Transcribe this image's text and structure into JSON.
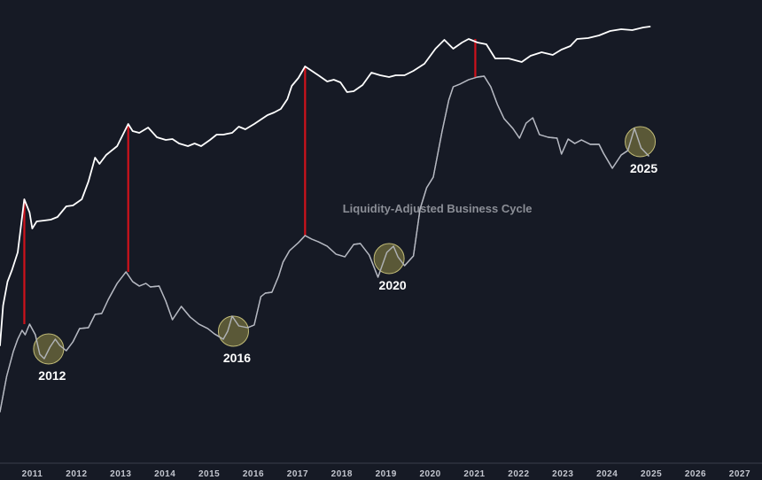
{
  "chart_data": {
    "type": "line",
    "title": "",
    "xlabel": "",
    "ylabel": "",
    "xlim": [
      2010.95,
      2027.6
    ],
    "x_ticks": [
      "2011",
      "2012",
      "2013",
      "2014",
      "2015",
      "2016",
      "2017",
      "2018",
      "2019",
      "2020",
      "2021",
      "2022",
      "2023",
      "2024",
      "2025",
      "2026",
      "2027"
    ],
    "grid": false,
    "colors": {
      "background": "#161a25",
      "price_line": "#ffffff",
      "cycle_line": "#b4b7c0",
      "peak_marker": "#d0121b",
      "cycle_circle_fill": "#6e6a3c",
      "cycle_circle_stroke": "#c2bc78",
      "axis_line": "#3a3e4a"
    },
    "series": [
      {
        "name": "",
        "role": "price",
        "points": [
          [
            2010.95,
            390
          ],
          [
            2011.02,
            345
          ],
          [
            2011.12,
            318
          ],
          [
            2011.22,
            305
          ],
          [
            2011.35,
            285
          ],
          [
            2011.5,
            225
          ],
          [
            2011.62,
            240
          ],
          [
            2011.68,
            258
          ],
          [
            2011.78,
            250
          ],
          [
            2011.95,
            249
          ],
          [
            2012.1,
            248
          ],
          [
            2012.25,
            245
          ],
          [
            2012.45,
            233
          ],
          [
            2012.6,
            232
          ],
          [
            2012.8,
            225
          ],
          [
            2012.95,
            205
          ],
          [
            2013.1,
            178
          ],
          [
            2013.2,
            185
          ],
          [
            2013.35,
            175
          ],
          [
            2013.6,
            165
          ],
          [
            2013.85,
            140
          ],
          [
            2013.95,
            148
          ],
          [
            2014.1,
            150
          ],
          [
            2014.3,
            144
          ],
          [
            2014.5,
            155
          ],
          [
            2014.7,
            158
          ],
          [
            2014.85,
            157
          ],
          [
            2015.0,
            162
          ],
          [
            2015.2,
            165
          ],
          [
            2015.35,
            162
          ],
          [
            2015.5,
            165
          ],
          [
            2015.7,
            158
          ],
          [
            2015.85,
            152
          ],
          [
            2016.0,
            152
          ],
          [
            2016.2,
            150
          ],
          [
            2016.35,
            143
          ],
          [
            2016.5,
            146
          ],
          [
            2016.7,
            140
          ],
          [
            2016.85,
            135
          ],
          [
            2017.0,
            130
          ],
          [
            2017.15,
            127
          ],
          [
            2017.3,
            123
          ],
          [
            2017.45,
            112
          ],
          [
            2017.55,
            97
          ],
          [
            2017.7,
            88
          ],
          [
            2017.85,
            75
          ],
          [
            2018.0,
            80
          ],
          [
            2018.15,
            85
          ],
          [
            2018.35,
            92
          ],
          [
            2018.5,
            90
          ],
          [
            2018.65,
            93
          ],
          [
            2018.8,
            104
          ],
          [
            2018.95,
            103
          ],
          [
            2019.15,
            96
          ],
          [
            2019.35,
            82
          ],
          [
            2019.55,
            85
          ],
          [
            2019.75,
            87
          ],
          [
            2019.9,
            85
          ],
          [
            2020.1,
            85
          ],
          [
            2020.3,
            80
          ],
          [
            2020.55,
            72
          ],
          [
            2020.8,
            55
          ],
          [
            2021.0,
            45
          ],
          [
            2021.2,
            55
          ],
          [
            2021.4,
            48
          ],
          [
            2021.55,
            44
          ],
          [
            2021.75,
            48
          ],
          [
            2021.95,
            50
          ],
          [
            2022.15,
            66
          ],
          [
            2022.45,
            66
          ],
          [
            2022.75,
            70
          ],
          [
            2022.95,
            63
          ],
          [
            2023.2,
            59
          ],
          [
            2023.45,
            62
          ],
          [
            2023.65,
            56
          ],
          [
            2023.85,
            52
          ],
          [
            2024.0,
            44
          ],
          [
            2024.25,
            43
          ],
          [
            2024.5,
            40
          ],
          [
            2024.75,
            35
          ],
          [
            2025.0,
            33
          ],
          [
            2025.25,
            34
          ],
          [
            2025.5,
            31
          ],
          [
            2025.65,
            30
          ]
        ]
      },
      {
        "name": "Liquidity-Adjusted Business Cycle",
        "role": "cycle",
        "points": [
          [
            2010.95,
            465
          ],
          [
            2011.1,
            425
          ],
          [
            2011.25,
            397
          ],
          [
            2011.35,
            383
          ],
          [
            2011.45,
            373
          ],
          [
            2011.52,
            378
          ],
          [
            2011.62,
            366
          ],
          [
            2011.75,
            378
          ],
          [
            2011.85,
            400
          ],
          [
            2011.95,
            405
          ],
          [
            2012.08,
            392
          ],
          [
            2012.2,
            383
          ],
          [
            2012.3,
            390
          ],
          [
            2012.45,
            396
          ],
          [
            2012.6,
            386
          ],
          [
            2012.75,
            371
          ],
          [
            2012.95,
            370
          ],
          [
            2013.1,
            355
          ],
          [
            2013.25,
            354
          ],
          [
            2013.4,
            338
          ],
          [
            2013.6,
            320
          ],
          [
            2013.8,
            307
          ],
          [
            2013.95,
            318
          ],
          [
            2014.1,
            323
          ],
          [
            2014.25,
            320
          ],
          [
            2014.35,
            324
          ],
          [
            2014.55,
            323
          ],
          [
            2014.7,
            340
          ],
          [
            2014.85,
            361
          ],
          [
            2015.05,
            346
          ],
          [
            2015.25,
            358
          ],
          [
            2015.45,
            366
          ],
          [
            2015.65,
            371
          ],
          [
            2015.8,
            377
          ],
          [
            2016.0,
            383
          ],
          [
            2016.1,
            374
          ],
          [
            2016.2,
            357
          ],
          [
            2016.35,
            368
          ],
          [
            2016.55,
            370
          ],
          [
            2016.7,
            367
          ],
          [
            2016.85,
            335
          ],
          [
            2016.95,
            331
          ],
          [
            2017.1,
            330
          ],
          [
            2017.25,
            312
          ],
          [
            2017.35,
            296
          ],
          [
            2017.5,
            283
          ],
          [
            2017.7,
            274
          ],
          [
            2017.85,
            266
          ],
          [
            2018.0,
            270
          ],
          [
            2018.15,
            273
          ],
          [
            2018.35,
            278
          ],
          [
            2018.55,
            287
          ],
          [
            2018.75,
            290
          ],
          [
            2018.95,
            276
          ],
          [
            2019.1,
            275
          ],
          [
            2019.3,
            288
          ],
          [
            2019.5,
            313
          ],
          [
            2019.7,
            285
          ],
          [
            2019.85,
            278
          ],
          [
            2019.95,
            290
          ],
          [
            2020.1,
            300
          ],
          [
            2020.3,
            289
          ],
          [
            2020.45,
            236
          ],
          [
            2020.6,
            212
          ],
          [
            2020.75,
            200
          ],
          [
            2020.95,
            148
          ],
          [
            2021.1,
            113
          ],
          [
            2021.2,
            98
          ],
          [
            2021.35,
            95
          ],
          [
            2021.55,
            90
          ],
          [
            2021.75,
            87
          ],
          [
            2021.9,
            86
          ],
          [
            2022.05,
            98
          ],
          [
            2022.2,
            118
          ],
          [
            2022.35,
            134
          ],
          [
            2022.55,
            145
          ],
          [
            2022.7,
            156
          ],
          [
            2022.85,
            139
          ],
          [
            2023.0,
            133
          ],
          [
            2023.15,
            152
          ],
          [
            2023.35,
            155
          ],
          [
            2023.55,
            156
          ],
          [
            2023.65,
            174
          ],
          [
            2023.8,
            157
          ],
          [
            2023.95,
            162
          ],
          [
            2024.1,
            158
          ],
          [
            2024.3,
            163
          ],
          [
            2024.5,
            163
          ],
          [
            2024.6,
            173
          ],
          [
            2024.8,
            190
          ],
          [
            2025.0,
            175
          ],
          [
            2025.15,
            170
          ],
          [
            2025.3,
            145
          ],
          [
            2025.45,
            167
          ],
          [
            2025.62,
            176
          ]
        ]
      }
    ],
    "peak_markers": [
      {
        "x": 2011.5,
        "from_y": 225,
        "to_y": 366
      },
      {
        "x": 2013.85,
        "from_y": 140,
        "to_y": 307
      },
      {
        "x": 2017.85,
        "from_y": 75,
        "to_y": 266
      },
      {
        "x": 2021.7,
        "from_y": 44,
        "to_y": 87
      }
    ],
    "cycle_troughs": [
      {
        "label": "2012",
        "x": 2012.05,
        "y": 394
      },
      {
        "label": "2016",
        "x": 2016.23,
        "y": 374
      },
      {
        "label": "2020",
        "x": 2019.75,
        "y": 292
      },
      {
        "label": "2025",
        "x": 2025.43,
        "y": 160
      }
    ],
    "annotations": [
      {
        "text": "Liquidity-Adjusted Business Cycle",
        "x": 2018.7,
        "y": 236
      }
    ]
  }
}
